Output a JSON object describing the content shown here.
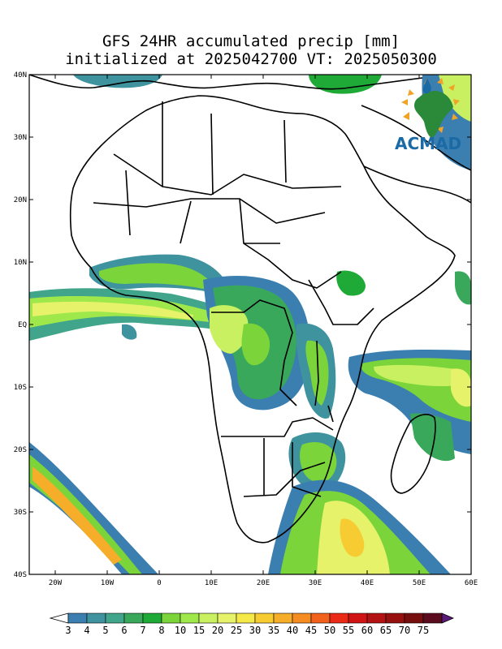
{
  "title": {
    "line1": "GFS 24HR accumulated precip [mm]",
    "line2": "initialized at 2025042700 VT: 2025050300"
  },
  "map": {
    "lon_range": [
      -25,
      60
    ],
    "lat_range": [
      -40,
      40
    ],
    "lat_ticks": [
      {
        "value": 40,
        "label": "40N"
      },
      {
        "value": 30,
        "label": "30N"
      },
      {
        "value": 20,
        "label": "20N"
      },
      {
        "value": 10,
        "label": "10N"
      },
      {
        "value": 0,
        "label": "EQ"
      },
      {
        "value": -10,
        "label": "10S"
      },
      {
        "value": -20,
        "label": "20S"
      },
      {
        "value": -30,
        "label": "30S"
      },
      {
        "value": -40,
        "label": "40S"
      }
    ],
    "lon_ticks": [
      {
        "value": -20,
        "label": "20W"
      },
      {
        "value": -10,
        "label": "10W"
      },
      {
        "value": 0,
        "label": "0"
      },
      {
        "value": 10,
        "label": "10E"
      },
      {
        "value": 20,
        "label": "20E"
      },
      {
        "value": 30,
        "label": "30E"
      },
      {
        "value": 40,
        "label": "40E"
      },
      {
        "value": 50,
        "label": "50E"
      },
      {
        "value": 60,
        "label": "60E"
      }
    ]
  },
  "logo": {
    "text": "ACMAD"
  },
  "colorbar": {
    "levels": [
      "3",
      "4",
      "5",
      "6",
      "7",
      "8",
      "10",
      "15",
      "20",
      "25",
      "30",
      "35",
      "40",
      "45",
      "50",
      "55",
      "60",
      "65",
      "70",
      "75"
    ],
    "colors": [
      "#3b7fb0",
      "#3e939e",
      "#41a58b",
      "#39a85a",
      "#1faa38",
      "#7ad43a",
      "#9ee84c",
      "#c8f060",
      "#e6f26a",
      "#f5e94a",
      "#f7cc32",
      "#f5ad2a",
      "#f48c22",
      "#f2621c",
      "#ea2a16",
      "#d01414",
      "#b31212",
      "#961010",
      "#760e0e",
      "#5a0c1e",
      "#5b1a7a"
    ]
  }
}
